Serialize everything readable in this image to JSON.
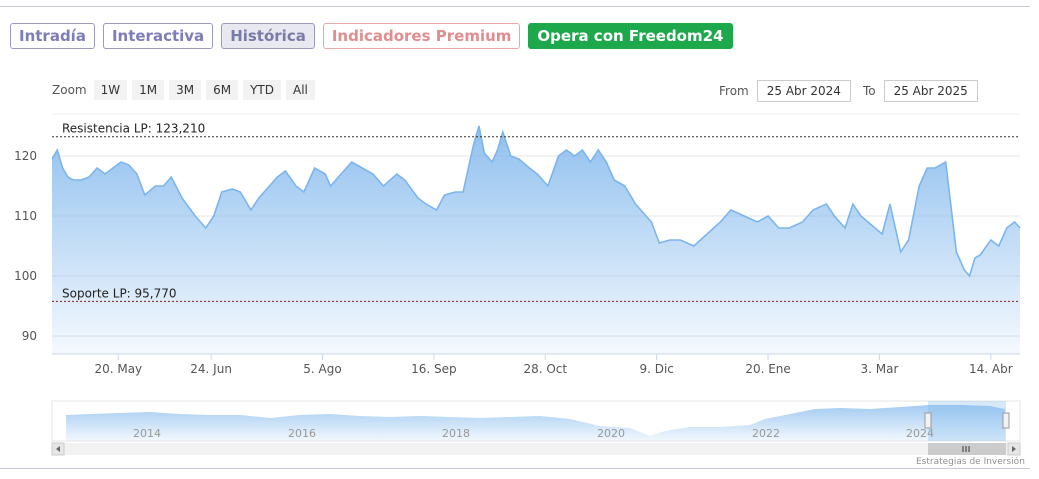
{
  "tabs": [
    {
      "label": "Intradía",
      "style": "normal"
    },
    {
      "label": "Interactiva",
      "style": "normal"
    },
    {
      "label": "Histórica",
      "style": "active"
    },
    {
      "label": "Indicadores Premium",
      "style": "premium"
    },
    {
      "label": "Opera con Freedom24",
      "style": "cta"
    }
  ],
  "zoom": {
    "label": "Zoom",
    "buttons": [
      "1W",
      "1M",
      "3M",
      "6M",
      "YTD",
      "All"
    ]
  },
  "range": {
    "from_label": "From",
    "from_value": "25 Abr 2024",
    "to_label": "To",
    "to_value": "25 Abr 2025"
  },
  "credit": "Estrategias de Inversión",
  "colors": {
    "series": "#7cb5ec",
    "resistance": "#333333",
    "support": "#8b1a1a",
    "cta": "#1ea84c",
    "tab_border": "#9a9ac4",
    "premium": "#e08d90"
  },
  "chart_data": {
    "type": "area",
    "title": "",
    "xlabel": "",
    "ylabel": "",
    "ylim": [
      87,
      127
    ],
    "yticks": [
      90,
      100,
      110,
      120
    ],
    "xticks": [
      "20. May",
      "24. Jun",
      "5. Ago",
      "16. Sep",
      "28. Oct",
      "9. Dic",
      "20. Ene",
      "3. Mar",
      "14. Abr"
    ],
    "x_range": [
      "25 Abr 2024",
      "25 Abr 2025"
    ],
    "annotations": [
      {
        "label": "Resistencia LP: 123,210",
        "value": 123.21,
        "style": "dotted"
      },
      {
        "label": "Soporte LP: 95,770",
        "value": 95.77,
        "style": "dotted"
      }
    ],
    "series": [
      {
        "x": [
          "2024-04-25",
          "2024-04-27",
          "2024-04-29",
          "2024-05-01",
          "2024-05-03",
          "2024-05-06",
          "2024-05-09",
          "2024-05-12",
          "2024-05-15",
          "2024-05-18",
          "2024-05-21",
          "2024-05-24",
          "2024-05-27",
          "2024-05-30",
          "2024-06-03",
          "2024-06-06",
          "2024-06-09",
          "2024-06-13",
          "2024-06-18",
          "2024-06-22",
          "2024-06-25",
          "2024-06-28",
          "2024-07-02",
          "2024-07-05",
          "2024-07-09",
          "2024-07-12",
          "2024-07-16",
          "2024-07-19",
          "2024-07-22",
          "2024-07-26",
          "2024-07-29",
          "2024-08-02",
          "2024-08-06",
          "2024-08-08",
          "2024-08-12",
          "2024-08-16",
          "2024-08-20",
          "2024-08-24",
          "2024-08-28",
          "2024-09-02",
          "2024-09-05",
          "2024-09-10",
          "2024-09-13",
          "2024-09-17",
          "2024-09-20",
          "2024-09-24",
          "2024-09-27",
          "2024-10-01",
          "2024-10-03",
          "2024-10-05",
          "2024-10-08",
          "2024-10-10",
          "2024-10-12",
          "2024-10-15",
          "2024-10-18",
          "2024-10-22",
          "2024-10-25",
          "2024-10-29",
          "2024-11-02",
          "2024-11-05",
          "2024-11-08",
          "2024-11-11",
          "2024-11-14",
          "2024-11-17",
          "2024-11-20",
          "2024-11-23",
          "2024-11-27",
          "2024-12-01",
          "2024-12-04",
          "2024-12-07",
          "2024-12-10",
          "2024-12-14",
          "2024-12-18",
          "2024-12-23",
          "2024-12-28",
          "2025-01-02",
          "2025-01-06",
          "2025-01-11",
          "2025-01-16",
          "2025-01-20",
          "2025-01-24",
          "2025-01-28",
          "2025-02-02",
          "2025-02-06",
          "2025-02-11",
          "2025-02-14",
          "2025-02-18",
          "2025-02-21",
          "2025-02-24",
          "2025-02-28",
          "2025-03-04",
          "2025-03-07",
          "2025-03-11",
          "2025-03-14",
          "2025-03-18",
          "2025-03-21",
          "2025-03-24",
          "2025-03-28",
          "2025-04-01",
          "2025-04-04",
          "2025-04-06",
          "2025-04-08",
          "2025-04-10",
          "2025-04-14",
          "2025-04-17",
          "2025-04-20",
          "2025-04-23",
          "2025-04-25"
        ],
        "values": [
          119.5,
          121,
          118,
          116.5,
          116,
          116,
          116.5,
          118,
          117,
          118,
          119,
          118.5,
          117,
          113.5,
          115,
          115,
          116.5,
          113,
          110,
          108,
          110,
          114,
          114.5,
          114,
          111,
          113,
          115,
          116.5,
          117.5,
          115,
          114,
          118,
          117,
          115,
          117,
          119,
          118,
          117,
          115,
          117,
          116,
          113,
          112,
          111,
          113.5,
          114,
          114,
          122,
          125,
          120.5,
          119,
          121,
          124,
          120,
          119.5,
          118,
          117,
          115,
          120,
          121,
          120,
          121,
          119,
          121,
          119,
          116,
          115,
          112,
          110.5,
          109,
          105.5,
          106,
          106,
          105,
          107,
          109,
          111,
          110,
          109,
          110,
          108,
          108,
          109,
          111,
          112,
          110,
          108,
          112,
          110,
          108.5,
          107,
          112,
          104,
          106,
          115,
          118,
          118,
          119,
          104,
          101,
          100,
          103,
          103.5,
          106,
          105,
          108,
          109,
          108
        ]
      }
    ],
    "navigator": {
      "year_labels": [
        "2014",
        "2016",
        "2018",
        "2020",
        "2022",
        "2024"
      ]
    }
  }
}
